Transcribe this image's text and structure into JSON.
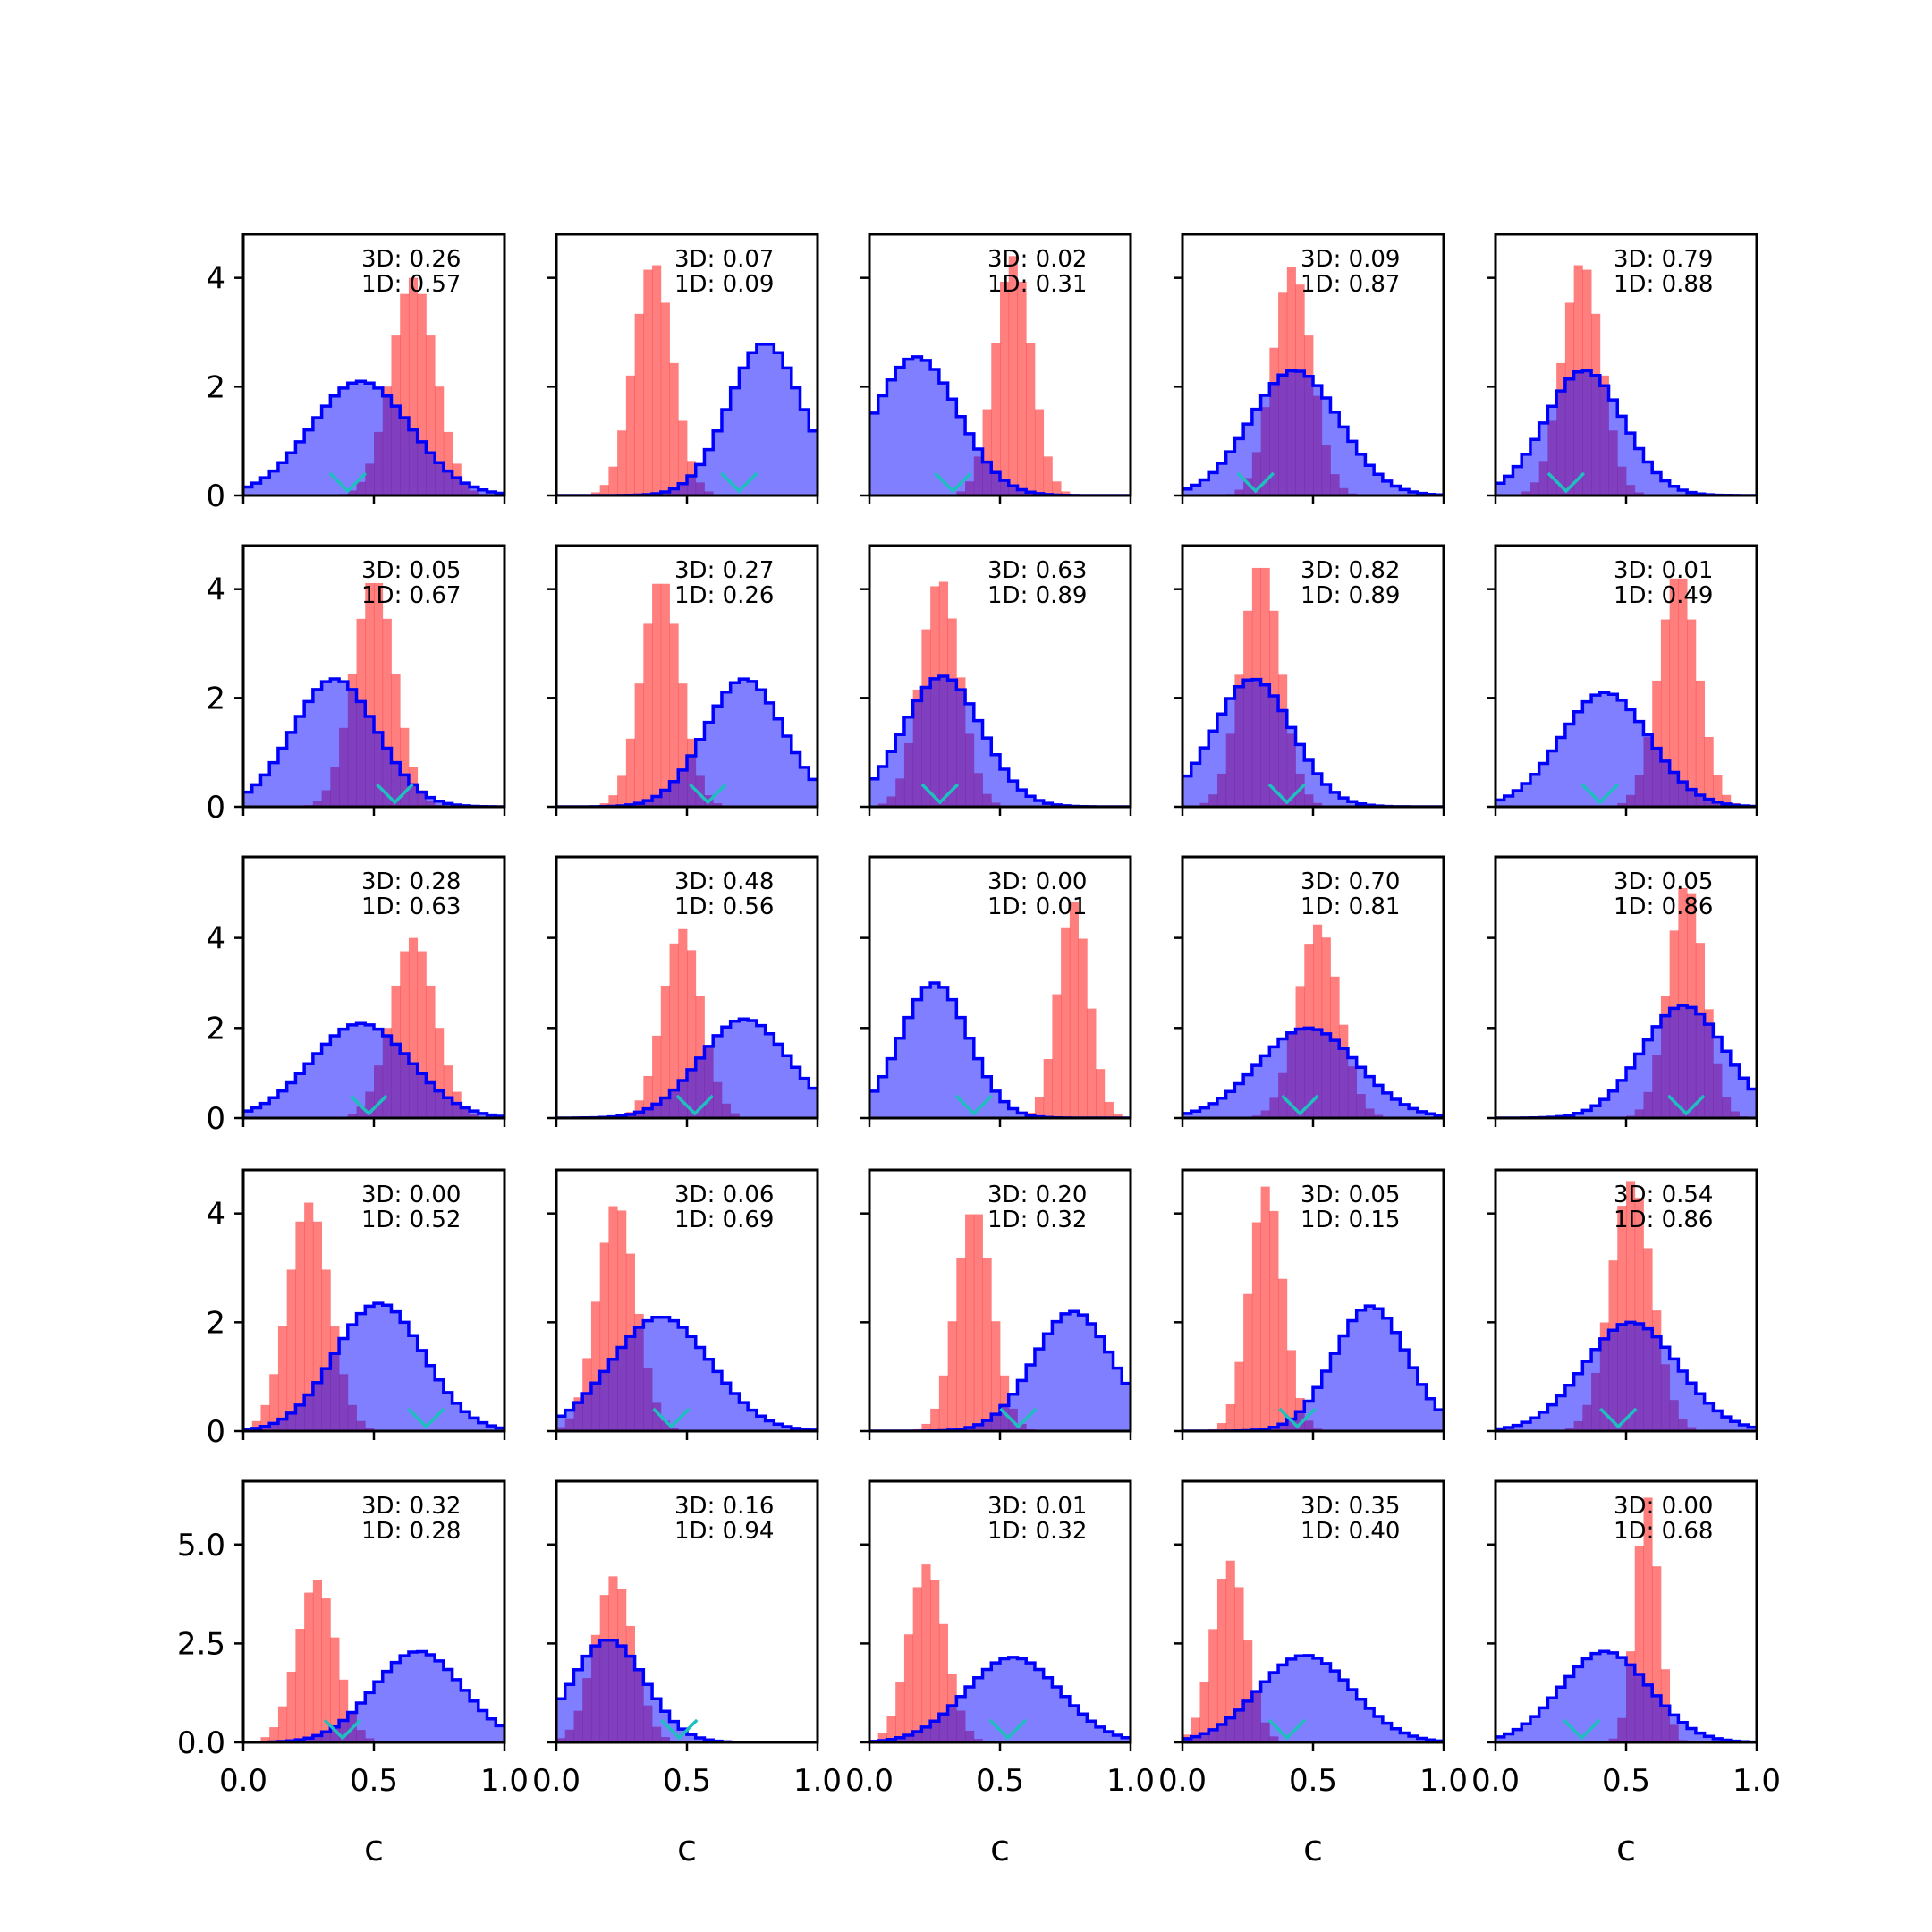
{
  "colors": {
    "series_3d": "#0000ff",
    "series_1d": "#ff0000",
    "marker": "#1fbfbf"
  },
  "chart_data": {
    "type": "grid-of-histograms",
    "rows": 5,
    "cols": 5,
    "xlabel": "c",
    "xlim": [
      0,
      1
    ],
    "xticks": [
      "0.0",
      "0.5",
      "1.0"
    ],
    "row_yaxes": [
      {
        "ylim": [
          0,
          4.8
        ],
        "ticks": [
          0,
          2,
          4
        ],
        "tick_labels": [
          "0",
          "2",
          "4"
        ]
      },
      {
        "ylim": [
          0,
          4.8
        ],
        "ticks": [
          0,
          2,
          4
        ],
        "tick_labels": [
          "0",
          "2",
          "4"
        ]
      },
      {
        "ylim": [
          0,
          5.8
        ],
        "ticks": [
          0,
          2,
          4
        ],
        "tick_labels": [
          "0",
          "2",
          "4"
        ]
      },
      {
        "ylim": [
          0,
          4.8
        ],
        "ticks": [
          0,
          2,
          4
        ],
        "tick_labels": [
          "0",
          "2",
          "4"
        ]
      },
      {
        "ylim": [
          0,
          6.6
        ],
        "ticks": [
          0,
          2.5,
          5.0
        ],
        "tick_labels": [
          "0.0",
          "2.5",
          "5.0"
        ]
      }
    ],
    "panels": [
      {
        "ann3d": "3D: 0.26",
        "ann1d": "1D: 0.57",
        "marker": 0.4,
        "red": {
          "mu": 0.65,
          "sd": 0.085,
          "peak": 4.0
        },
        "blue": {
          "mu": 0.45,
          "sd": 0.19,
          "peak": 2.1
        }
      },
      {
        "ann3d": "3D: 0.07",
        "ann1d": "1D: 0.09",
        "marker": 0.7,
        "red": {
          "mu": 0.37,
          "sd": 0.075,
          "peak": 4.3
        },
        "blue": {
          "mu": 0.8,
          "sd": 0.14,
          "peak": 2.8
        }
      },
      {
        "ann3d": "3D: 0.02",
        "ann1d": "1D: 0.31",
        "marker": 0.32,
        "red": {
          "mu": 0.55,
          "sd": 0.07,
          "peak": 4.4
        },
        "blue": {
          "mu": 0.18,
          "sd": 0.16,
          "peak": 2.55
        }
      },
      {
        "ann3d": "3D: 0.09",
        "ann1d": "1D: 0.87",
        "marker": 0.28,
        "red": {
          "mu": 0.42,
          "sd": 0.075,
          "peak": 4.2
        },
        "blue": {
          "mu": 0.43,
          "sd": 0.17,
          "peak": 2.3
        }
      },
      {
        "ann3d": "3D: 0.79",
        "ann1d": "1D: 0.88",
        "marker": 0.27,
        "red": {
          "mu": 0.33,
          "sd": 0.075,
          "peak": 4.3
        },
        "blue": {
          "mu": 0.34,
          "sd": 0.15,
          "peak": 2.3
        }
      },
      {
        "ann3d": "3D: 0.05",
        "ann1d": "1D: 0.67",
        "marker": 0.58,
        "red": {
          "mu": 0.5,
          "sd": 0.08,
          "peak": 4.2
        },
        "blue": {
          "mu": 0.35,
          "sd": 0.16,
          "peak": 2.35
        }
      },
      {
        "ann3d": "3D: 0.27",
        "ann1d": "1D: 0.26",
        "marker": 0.58,
        "red": {
          "mu": 0.4,
          "sd": 0.075,
          "peak": 4.2
        },
        "blue": {
          "mu": 0.72,
          "sd": 0.15,
          "peak": 2.35
        }
      },
      {
        "ann3d": "3D: 0.63",
        "ann1d": "1D: 0.89",
        "marker": 0.27,
        "red": {
          "mu": 0.27,
          "sd": 0.075,
          "peak": 4.2
        },
        "blue": {
          "mu": 0.28,
          "sd": 0.15,
          "peak": 2.4
        }
      },
      {
        "ann3d": "3D: 0.82",
        "ann1d": "1D: 0.89",
        "marker": 0.4,
        "red": {
          "mu": 0.3,
          "sd": 0.075,
          "peak": 4.5
        },
        "blue": {
          "mu": 0.27,
          "sd": 0.15,
          "peak": 2.35
        }
      },
      {
        "ann3d": "3D: 0.01",
        "ann1d": "1D: 0.49",
        "marker": 0.4,
        "red": {
          "mu": 0.7,
          "sd": 0.075,
          "peak": 4.3
        },
        "blue": {
          "mu": 0.42,
          "sd": 0.17,
          "peak": 2.1
        }
      },
      {
        "ann3d": "3D: 0.28",
        "ann1d": "1D: 0.63",
        "marker": 0.48,
        "red": {
          "mu": 0.65,
          "sd": 0.085,
          "peak": 4.0
        },
        "blue": {
          "mu": 0.45,
          "sd": 0.19,
          "peak": 2.1
        }
      },
      {
        "ann3d": "3D: 0.48",
        "ann1d": "1D: 0.56",
        "marker": 0.53,
        "red": {
          "mu": 0.48,
          "sd": 0.075,
          "peak": 4.2
        },
        "blue": {
          "mu": 0.72,
          "sd": 0.17,
          "peak": 2.2
        }
      },
      {
        "ann3d": "3D: 0.00",
        "ann1d": "1D: 0.01",
        "marker": 0.4,
        "red": {
          "mu": 0.78,
          "sd": 0.06,
          "peak": 4.8
        },
        "blue": {
          "mu": 0.25,
          "sd": 0.13,
          "peak": 3.0
        }
      },
      {
        "ann3d": "3D: 0.70",
        "ann1d": "1D: 0.81",
        "marker": 0.45,
        "red": {
          "mu": 0.52,
          "sd": 0.08,
          "peak": 4.3
        },
        "blue": {
          "mu": 0.48,
          "sd": 0.19,
          "peak": 2.0
        }
      },
      {
        "ann3d": "3D: 0.05",
        "ann1d": "1D: 0.86",
        "marker": 0.73,
        "red": {
          "mu": 0.73,
          "sd": 0.07,
          "peak": 5.2
        },
        "blue": {
          "mu": 0.72,
          "sd": 0.16,
          "peak": 2.5
        }
      },
      {
        "ann3d": "3D: 0.00",
        "ann1d": "1D: 0.52",
        "marker": 0.7,
        "red": {
          "mu": 0.25,
          "sd": 0.08,
          "peak": 4.2
        },
        "blue": {
          "mu": 0.52,
          "sd": 0.17,
          "peak": 2.35
        }
      },
      {
        "ann3d": "3D: 0.06",
        "ann1d": "1D: 0.69",
        "marker": 0.44,
        "red": {
          "mu": 0.23,
          "sd": 0.075,
          "peak": 4.2
        },
        "blue": {
          "mu": 0.4,
          "sd": 0.19,
          "peak": 2.1
        }
      },
      {
        "ann3d": "3D: 0.20",
        "ann1d": "1D: 0.32",
        "marker": 0.57,
        "red": {
          "mu": 0.4,
          "sd": 0.07,
          "peak": 4.1
        },
        "blue": {
          "mu": 0.78,
          "sd": 0.15,
          "peak": 2.2
        }
      },
      {
        "ann3d": "3D: 0.05",
        "ann1d": "1D: 0.15",
        "marker": 0.44,
        "red": {
          "mu": 0.32,
          "sd": 0.065,
          "peak": 4.5
        },
        "blue": {
          "mu": 0.72,
          "sd": 0.14,
          "peak": 2.3
        }
      },
      {
        "ann3d": "3D: 0.54",
        "ann1d": "1D: 0.86",
        "marker": 0.47,
        "red": {
          "mu": 0.52,
          "sd": 0.08,
          "peak": 4.6
        },
        "blue": {
          "mu": 0.52,
          "sd": 0.18,
          "peak": 2.0
        }
      },
      {
        "ann3d": "3D: 0.32",
        "ann1d": "1D: 0.28",
        "marker": 0.38,
        "red": {
          "mu": 0.28,
          "sd": 0.075,
          "peak": 4.1
        },
        "blue": {
          "mu": 0.67,
          "sd": 0.17,
          "peak": 2.3
        }
      },
      {
        "ann3d": "3D: 0.16",
        "ann1d": "1D: 0.94",
        "marker": 0.47,
        "red": {
          "mu": 0.22,
          "sd": 0.075,
          "peak": 4.2
        },
        "blue": {
          "mu": 0.2,
          "sd": 0.14,
          "peak": 2.6
        }
      },
      {
        "ann3d": "3D: 0.01",
        "ann1d": "1D: 0.32",
        "marker": 0.53,
        "red": {
          "mu": 0.22,
          "sd": 0.07,
          "peak": 4.5
        },
        "blue": {
          "mu": 0.55,
          "sd": 0.18,
          "peak": 2.15
        }
      },
      {
        "ann3d": "3D: 0.35",
        "ann1d": "1D: 0.40",
        "marker": 0.4,
        "red": {
          "mu": 0.18,
          "sd": 0.065,
          "peak": 4.6
        },
        "blue": {
          "mu": 0.47,
          "sd": 0.18,
          "peak": 2.2
        }
      },
      {
        "ann3d": "3D: 0.00",
        "ann1d": "1D: 0.68",
        "marker": 0.33,
        "red": {
          "mu": 0.58,
          "sd": 0.045,
          "peak": 6.2
        },
        "blue": {
          "mu": 0.42,
          "sd": 0.17,
          "peak": 2.3
        }
      }
    ]
  }
}
